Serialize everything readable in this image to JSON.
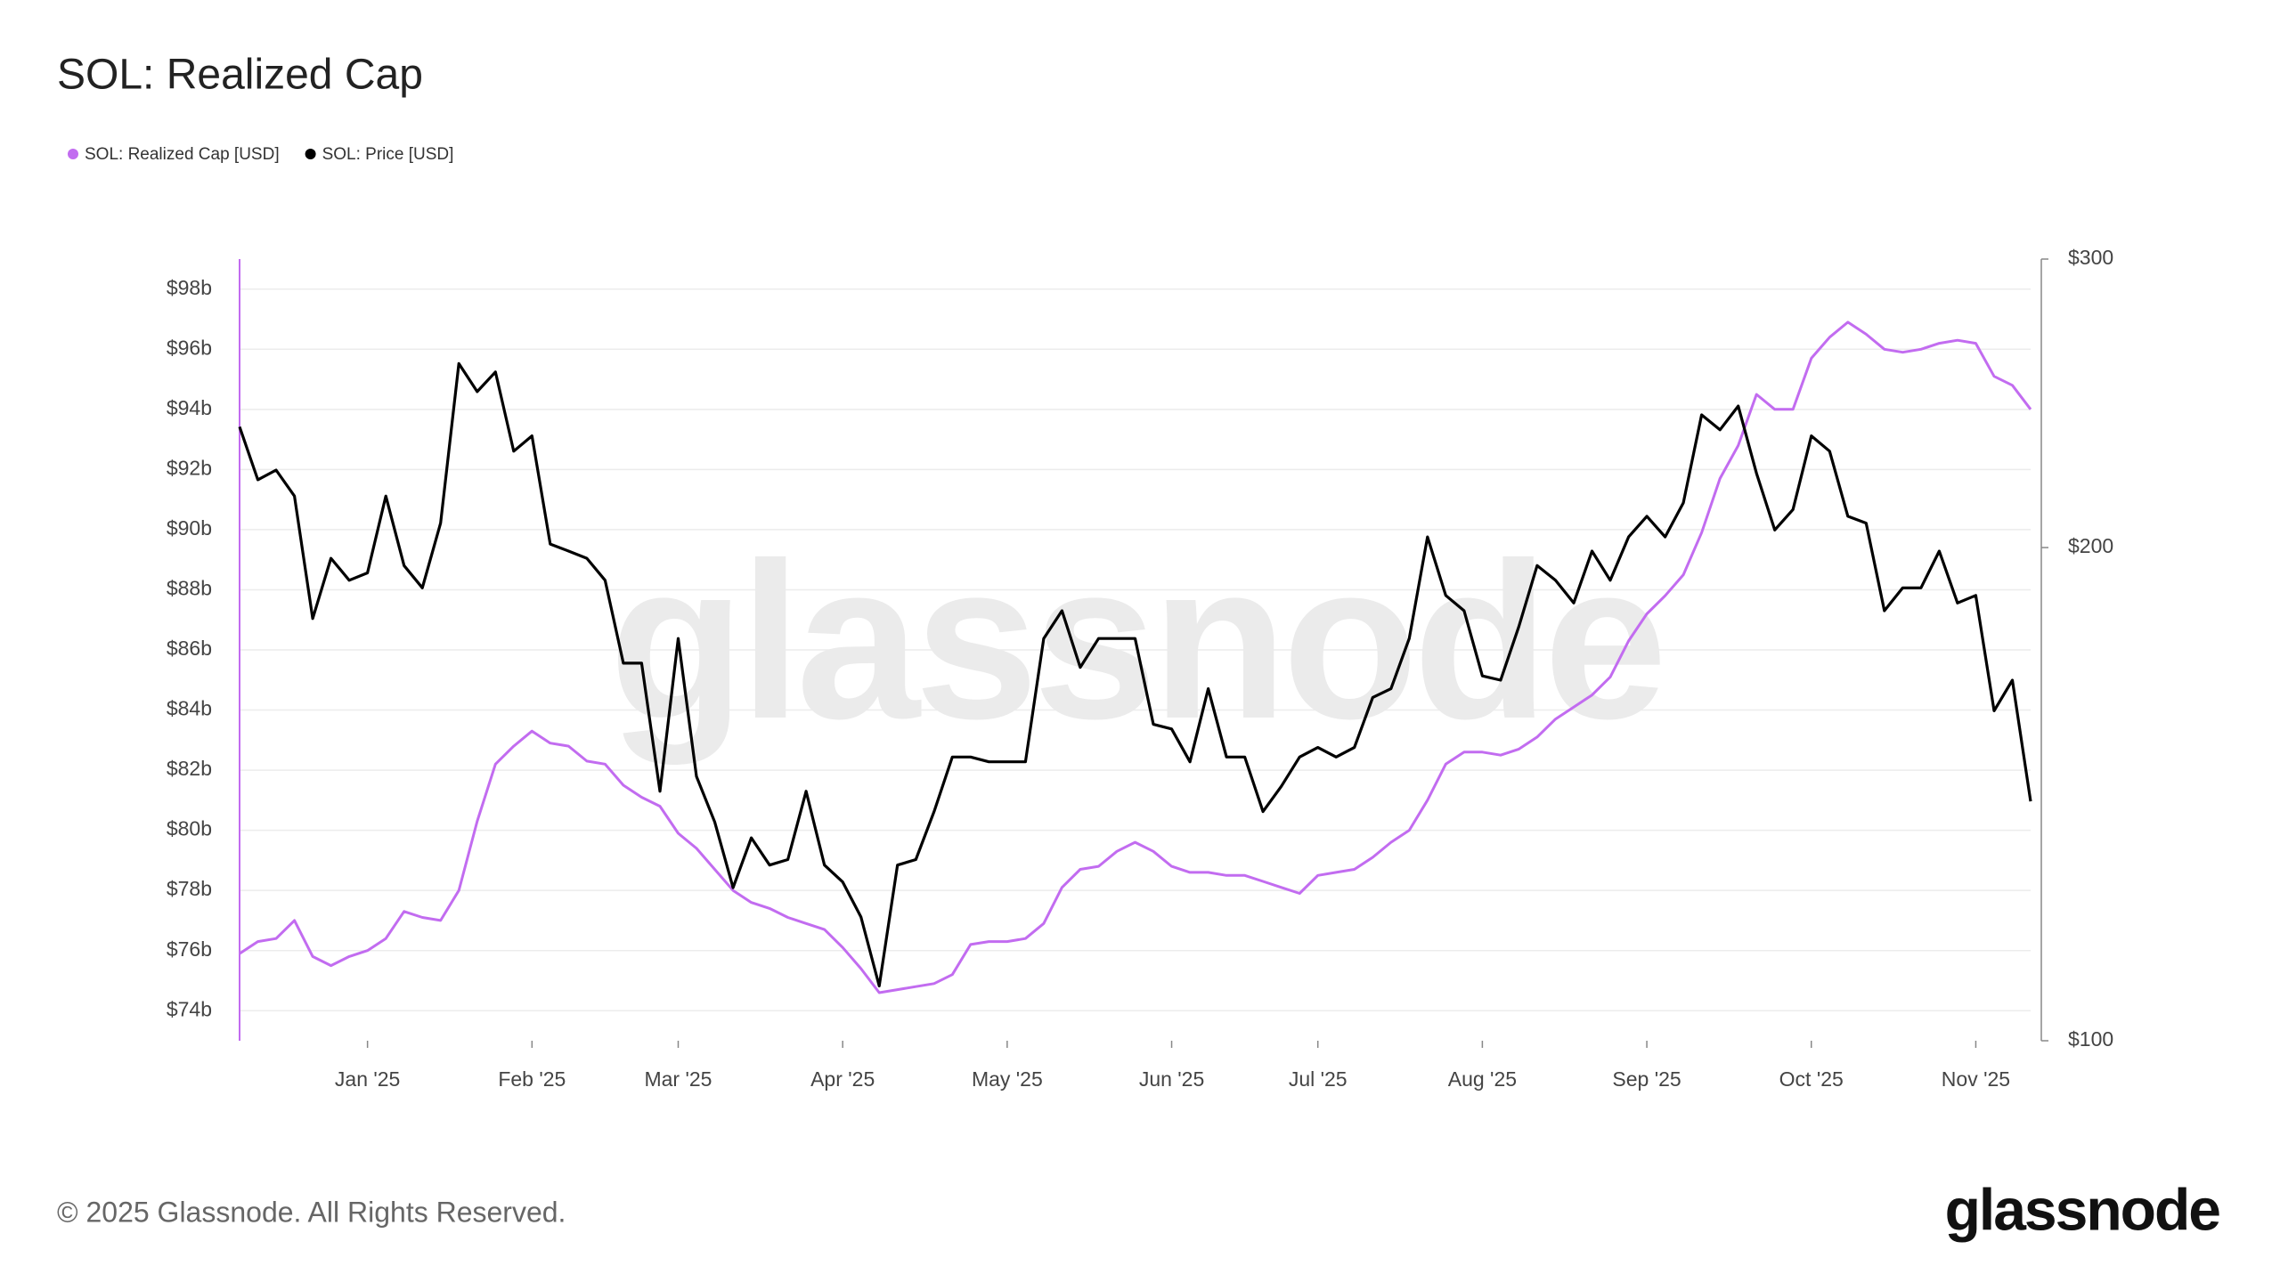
{
  "chart_data": {
    "type": "line",
    "title": "SOL: Realized Cap",
    "categories": [
      null,
      null,
      null,
      null,
      null,
      null,
      null,
      "Jan '25",
      null,
      null,
      null,
      null,
      null,
      null,
      null,
      null,
      "Feb '25",
      null,
      null,
      null,
      null,
      null,
      null,
      null,
      "Mar '25",
      null,
      null,
      null,
      null,
      null,
      null,
      null,
      null,
      "Apr '25",
      null,
      null,
      null,
      null,
      null,
      null,
      null,
      null,
      "May '25",
      null,
      null,
      null,
      null,
      null,
      null,
      null,
      null,
      "Jun '25",
      null,
      null,
      null,
      null,
      null,
      null,
      null,
      "Jul '25",
      null,
      null,
      null,
      null,
      null,
      null,
      null,
      null,
      "Aug '25",
      null,
      null,
      null,
      null,
      null,
      null,
      null,
      null,
      "Sep '25",
      null,
      null,
      null,
      null,
      null,
      null,
      null,
      null,
      "Oct '25",
      null,
      null,
      null,
      null,
      null,
      null,
      null,
      null,
      "Nov '25",
      null,
      null,
      null
    ],
    "series": [
      {
        "name": "SOL: Realized Cap [USD]",
        "color": "#c26cf0",
        "values": [
          75.9,
          76.3,
          76.4,
          77.0,
          75.8,
          75.5,
          75.8,
          76.0,
          76.4,
          77.3,
          77.1,
          77.0,
          78.0,
          80.3,
          82.2,
          82.8,
          83.3,
          82.9,
          82.8,
          82.3,
          82.2,
          81.5,
          81.1,
          80.8,
          79.9,
          79.4,
          78.7,
          78.0,
          77.6,
          77.4,
          77.1,
          76.9,
          76.7,
          76.1,
          75.4,
          74.6,
          74.7,
          74.8,
          74.9,
          75.2,
          76.2,
          76.3,
          76.3,
          76.4,
          76.9,
          78.1,
          78.7,
          78.8,
          79.3,
          79.6,
          79.3,
          78.8,
          78.6,
          78.6,
          78.5,
          78.5,
          78.3,
          78.1,
          77.9,
          78.5,
          78.6,
          78.7,
          79.1,
          79.6,
          80.0,
          81.0,
          82.2,
          82.6,
          82.6,
          82.5,
          82.7,
          83.1,
          83.7,
          84.1,
          84.5,
          85.1,
          86.3,
          87.2,
          87.8,
          88.5,
          89.9,
          91.7,
          92.8,
          94.5,
          94.0,
          94.0,
          95.7,
          96.4,
          96.9,
          96.5,
          96.0,
          95.9,
          96.0,
          96.2,
          96.3,
          96.2,
          95.1,
          94.8,
          94.0
        ]
      },
      {
        "name": "SOL: Price [USD]",
        "color": "#000000",
        "axis": "y2",
        "values": [
          237,
          220,
          223,
          215,
          181,
          197,
          191,
          193,
          215,
          195,
          189,
          207,
          259,
          249,
          256,
          229,
          234,
          201,
          199,
          197,
          191,
          170,
          170,
          142,
          176,
          145,
          136,
          124,
          133,
          128,
          129,
          142,
          128,
          125,
          119,
          108,
          128,
          129,
          138,
          149,
          149,
          148,
          148,
          148,
          176,
          183,
          169,
          176,
          176,
          176,
          156,
          155,
          148,
          164,
          149,
          149,
          138,
          143,
          149,
          151,
          149,
          151,
          162,
          164,
          176,
          203,
          187,
          183,
          167,
          166,
          179,
          195,
          191,
          185,
          199,
          191,
          203,
          209,
          203,
          213,
          241,
          236,
          244,
          222,
          205,
          211,
          234,
          229,
          209,
          207,
          183,
          189,
          189,
          199,
          185,
          187,
          159,
          166,
          140
        ]
      }
    ],
    "ylim": [
      73,
      99
    ],
    "yticks": [
      {
        "value": 74,
        "label": "$74b"
      },
      {
        "value": 76,
        "label": "$76b"
      },
      {
        "value": 78,
        "label": "$78b"
      },
      {
        "value": 80,
        "label": "$80b"
      },
      {
        "value": 82,
        "label": "$82b"
      },
      {
        "value": 84,
        "label": "$84b"
      },
      {
        "value": 86,
        "label": "$86b"
      },
      {
        "value": 88,
        "label": "$88b"
      },
      {
        "value": 90,
        "label": "$90b"
      },
      {
        "value": 92,
        "label": "$92b"
      },
      {
        "value": 94,
        "label": "$94b"
      },
      {
        "value": 96,
        "label": "$96b"
      },
      {
        "value": 98,
        "label": "$98b"
      }
    ],
    "y2lim": [
      100,
      300
    ],
    "y2ticks": [
      {
        "value": 100,
        "label": "$100"
      },
      {
        "value": 200,
        "label": "$200"
      },
      {
        "value": 300,
        "label": "$300"
      }
    ],
    "y2scale": "log",
    "grid": true,
    "legend": "top-left"
  },
  "watermark": "glassnode",
  "footer": {
    "copyright": "© 2025 Glassnode. All Rights Reserved.",
    "logo": "glassnode"
  }
}
